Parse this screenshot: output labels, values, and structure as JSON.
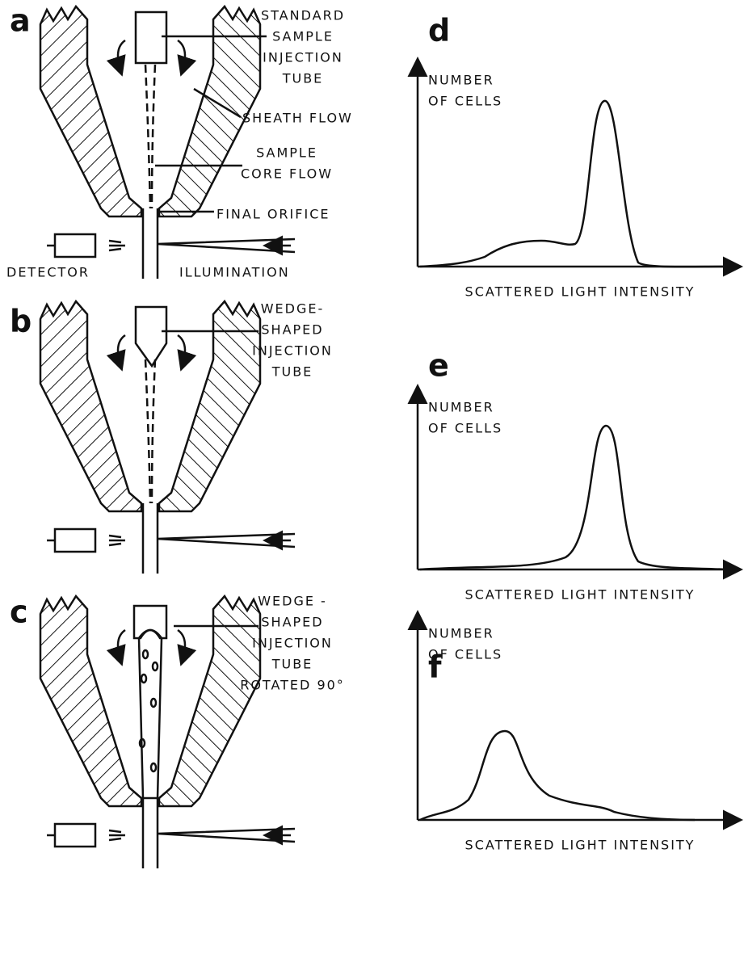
{
  "panels": [
    {
      "letter": "a",
      "labels": [
        {
          "lines": [
            "STANDARD",
            "SAMPLE",
            "INJECTION",
            "TUBE"
          ]
        },
        {
          "lines": [
            "SHEATH FLOW"
          ]
        },
        {
          "lines": [
            "SAMPLE",
            "CORE FLOW"
          ]
        },
        {
          "lines": [
            "FINAL ORIFICE"
          ]
        },
        {
          "lines": [
            "DETECTOR"
          ]
        },
        {
          "lines": [
            "ILLUMINATION"
          ]
        }
      ]
    },
    {
      "letter": "b",
      "labels": [
        {
          "lines": [
            "WEDGE-",
            "SHAPED",
            "INJECTION",
            "TUBE"
          ]
        }
      ]
    },
    {
      "letter": "c",
      "labels": [
        {
          "lines": [
            "WEDGE -",
            "SHAPED",
            "INJECTION",
            "TUBE",
            "ROTATED 90°"
          ]
        }
      ]
    }
  ],
  "histograms": [
    {
      "letter": "d",
      "y_label": [
        "NUMBER",
        "OF CELLS"
      ],
      "x_label": "SCATTERED LIGHT INTENSITY"
    },
    {
      "letter": "e",
      "y_label": [
        "NUMBER",
        "OF CELLS"
      ],
      "x_label": "SCATTERED LIGHT INTENSITY"
    },
    {
      "letter": "f",
      "y_label": [
        "NUMBER",
        "OF CELLS"
      ],
      "x_label": "SCATTERED LIGHT INTENSITY"
    }
  ]
}
